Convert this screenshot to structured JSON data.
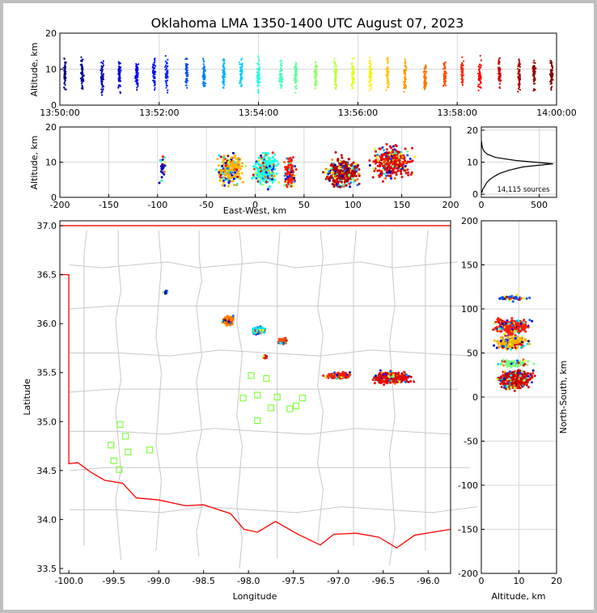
{
  "title": "Oklahoma LMA 1350-1400 UTC August 07, 2023",
  "chart_data": [
    {
      "type": "scatter",
      "panel": "altitude-time",
      "xlabel": "",
      "ylabel": "Altitude, km",
      "x_tick_labels": [
        "13:50:00",
        "13:52:00",
        "13:54:00",
        "13:56:00",
        "13:58:00",
        "14:00:00"
      ],
      "xlim_minutes": [
        0,
        10
      ],
      "ylim": [
        0,
        20
      ],
      "y_ticks": [
        0,
        10,
        20
      ],
      "grid": true,
      "bursts": [
        {
          "t": 0.1,
          "c": 0.0
        },
        {
          "t": 0.45,
          "c": 0.03
        },
        {
          "t": 0.85,
          "c": 0.06
        },
        {
          "t": 1.2,
          "c": 0.09
        },
        {
          "t": 1.55,
          "c": 0.12
        },
        {
          "t": 1.9,
          "c": 0.14
        },
        {
          "t": 2.15,
          "c": 0.16
        },
        {
          "t": 2.55,
          "c": 0.2
        },
        {
          "t": 2.9,
          "c": 0.25
        },
        {
          "t": 3.3,
          "c": 0.3
        },
        {
          "t": 3.65,
          "c": 0.33
        },
        {
          "t": 4.0,
          "c": 0.4
        },
        {
          "t": 4.45,
          "c": 0.44
        },
        {
          "t": 4.75,
          "c": 0.47
        },
        {
          "t": 5.15,
          "c": 0.52
        },
        {
          "t": 5.55,
          "c": 0.56
        },
        {
          "t": 5.9,
          "c": 0.6
        },
        {
          "t": 6.25,
          "c": 0.64
        },
        {
          "t": 6.6,
          "c": 0.68
        },
        {
          "t": 6.95,
          "c": 0.72
        },
        {
          "t": 7.35,
          "c": 0.76
        },
        {
          "t": 7.75,
          "c": 0.8
        },
        {
          "t": 8.1,
          "c": 0.84
        },
        {
          "t": 8.45,
          "c": 0.88
        },
        {
          "t": 8.85,
          "c": 0.92
        },
        {
          "t": 9.25,
          "c": 0.96
        },
        {
          "t": 9.55,
          "c": 0.98
        },
        {
          "t": 9.9,
          "c": 1.0
        }
      ]
    },
    {
      "type": "scatter",
      "panel": "altitude-eastwest",
      "xlabel": "East-West, km",
      "ylabel": "Altitude, km",
      "xlim": [
        -200,
        200
      ],
      "ylim": [
        0,
        20
      ],
      "x_ticks": [
        -200,
        -150,
        -100,
        -50,
        0,
        50,
        100,
        150,
        200
      ],
      "y_ticks": [
        0,
        10,
        20
      ],
      "grid": true,
      "clusters": [
        {
          "x": -95,
          "w": 6,
          "z": 8,
          "n": 25,
          "c": 0.05
        },
        {
          "x": -25,
          "w": 18,
          "z": 8,
          "n": 260,
          "c": 0.7
        },
        {
          "x": 10,
          "w": 16,
          "z": 8,
          "n": 260,
          "c": 0.4
        },
        {
          "x": 35,
          "w": 8,
          "z": 7,
          "n": 100,
          "c": 0.85
        },
        {
          "x": 90,
          "w": 25,
          "z": 7,
          "n": 320,
          "c": 0.95
        },
        {
          "x": 140,
          "w": 25,
          "z": 10,
          "n": 360,
          "c": 0.9
        }
      ]
    },
    {
      "type": "line",
      "panel": "altitude-histogram",
      "annotation": "14,115 sources",
      "xlim": [
        0,
        650
      ],
      "ylim": [
        -1,
        21
      ],
      "x_ticks": [
        0,
        500
      ],
      "y_ticks": [
        0,
        10,
        20
      ],
      "grid": true,
      "profile": [
        {
          "alt": 0.5,
          "count": 5
        },
        {
          "alt": 1.5,
          "count": 12
        },
        {
          "alt": 2.5,
          "count": 30
        },
        {
          "alt": 3.5,
          "count": 45
        },
        {
          "alt": 4.5,
          "count": 70
        },
        {
          "alt": 5.5,
          "count": 110
        },
        {
          "alt": 6.5,
          "count": 160
        },
        {
          "alt": 7.5,
          "count": 240
        },
        {
          "alt": 8.5,
          "count": 360
        },
        {
          "alt": 9.5,
          "count": 620
        },
        {
          "alt": 10.5,
          "count": 300
        },
        {
          "alt": 11.5,
          "count": 120
        },
        {
          "alt": 12.5,
          "count": 50
        },
        {
          "alt": 13.5,
          "count": 22
        },
        {
          "alt": 14.5,
          "count": 10
        },
        {
          "alt": 15.5,
          "count": 5
        },
        {
          "alt": 16.5,
          "count": 2
        }
      ]
    },
    {
      "type": "scatter",
      "panel": "plan-view",
      "xlabel": "Longitude",
      "ylabel": "Latitude",
      "xlim": [
        -100.1,
        -95.75
      ],
      "ylim": [
        33.45,
        37.05
      ],
      "x_ticks": [
        -100.0,
        -99.5,
        -99.0,
        -98.5,
        -98.0,
        -97.5,
        -97.0,
        -96.5,
        -96.0
      ],
      "y_ticks": [
        33.5,
        34.0,
        34.5,
        35.0,
        35.5,
        36.0,
        36.5,
        37.0
      ],
      "clusters": [
        {
          "lon": -98.92,
          "lat": 36.32,
          "wlon": 0.03,
          "wlat": 0.02,
          "n": 20,
          "c": 0.05
        },
        {
          "lon": -98.22,
          "lat": 36.03,
          "wlon": 0.08,
          "wlat": 0.06,
          "n": 220,
          "c": 0.75
        },
        {
          "lon": -97.88,
          "lat": 35.93,
          "wlon": 0.1,
          "wlat": 0.05,
          "n": 160,
          "c": 0.35
        },
        {
          "lon": -97.62,
          "lat": 35.82,
          "wlon": 0.06,
          "wlat": 0.04,
          "n": 120,
          "c": 0.8
        },
        {
          "lon": -97.82,
          "lat": 35.66,
          "wlon": 0.03,
          "wlat": 0.02,
          "n": 30,
          "c": 0.9
        },
        {
          "lon": -97.0,
          "lat": 35.47,
          "wlon": 0.18,
          "wlat": 0.04,
          "n": 260,
          "c": 0.85
        },
        {
          "lon": -96.4,
          "lat": 35.45,
          "wlon": 0.25,
          "wlat": 0.08,
          "n": 420,
          "c": 0.9
        }
      ],
      "stations": [
        {
          "lon": -99.43,
          "lat": 34.97
        },
        {
          "lon": -99.37,
          "lat": 34.85
        },
        {
          "lon": -99.53,
          "lat": 34.76
        },
        {
          "lon": -99.34,
          "lat": 34.69
        },
        {
          "lon": -99.1,
          "lat": 34.71
        },
        {
          "lon": -99.5,
          "lat": 34.6
        },
        {
          "lon": -99.44,
          "lat": 34.51
        },
        {
          "lon": -98.06,
          "lat": 35.24
        },
        {
          "lon": -97.97,
          "lat": 35.47
        },
        {
          "lon": -97.9,
          "lat": 35.27
        },
        {
          "lon": -97.8,
          "lat": 35.44
        },
        {
          "lon": -97.75,
          "lat": 35.14
        },
        {
          "lon": -97.68,
          "lat": 35.25
        },
        {
          "lon": -97.54,
          "lat": 35.13
        },
        {
          "lon": -97.47,
          "lat": 35.16
        },
        {
          "lon": -97.4,
          "lat": 35.24
        },
        {
          "lon": -97.9,
          "lat": 35.01
        }
      ],
      "state_border_color": "#ff0000",
      "station_color": "#80ff40"
    },
    {
      "type": "scatter",
      "panel": "northsouth-altitude",
      "xlabel": "Altitude, km",
      "ylabel": "North-South, km",
      "xlim": [
        0,
        20
      ],
      "ylim": [
        -200,
        200
      ],
      "x_ticks": [
        0,
        10,
        20
      ],
      "y_ticks": [
        -200,
        -150,
        -100,
        -50,
        0,
        50,
        100,
        150,
        200
      ],
      "grid": true,
      "clusters": [
        {
          "y": 112,
          "w": 4,
          "z": 8,
          "n": 40,
          "c": 0.2
        },
        {
          "y": 80,
          "w": 12,
          "z": 8,
          "n": 300,
          "c": 0.85
        },
        {
          "y": 62,
          "w": 10,
          "z": 8,
          "n": 200,
          "c": 0.7
        },
        {
          "y": 20,
          "w": 14,
          "z": 9,
          "n": 420,
          "c": 0.92
        },
        {
          "y": 38,
          "w": 6,
          "z": 9,
          "n": 90,
          "c": 0.5
        }
      ]
    }
  ]
}
